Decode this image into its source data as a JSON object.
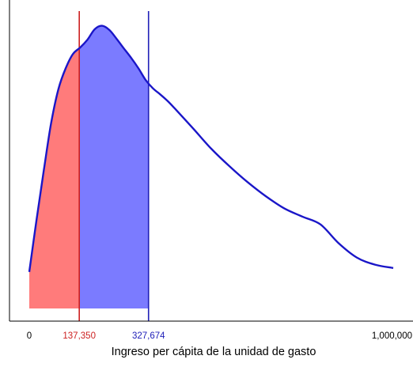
{
  "chart_data": {
    "type": "area",
    "xlabel": "Ingreso per cápita de la unidad de gasto",
    "xlim": [
      0,
      1000000
    ],
    "x_tick_labels": [
      {
        "value": 0,
        "label": "0",
        "color": "#000000"
      },
      {
        "value": 137350,
        "label": "137,350",
        "color": "#cc1f1f"
      },
      {
        "value": 327674,
        "label": "327,674",
        "color": "#2020b8"
      },
      {
        "value": 1000000,
        "label": "1,000,000",
        "color": "#000000"
      }
    ],
    "density_curve": {
      "x": [
        0,
        20000,
        40000,
        60000,
        80000,
        100000,
        120000,
        140000,
        160000,
        180000,
        200000,
        220000,
        240000,
        260000,
        280000,
        300000,
        320000,
        340000,
        360000,
        380000,
        400000,
        450000,
        500000,
        550000,
        600000,
        650000,
        700000,
        750000,
        800000,
        850000,
        900000,
        950000,
        1000000
      ],
      "y": [
        0.14,
        0.34,
        0.53,
        0.71,
        0.84,
        0.92,
        0.975,
        1.0,
        1.03,
        1.07,
        1.083,
        1.067,
        1.033,
        0.996,
        0.96,
        0.92,
        0.875,
        0.843,
        0.82,
        0.795,
        0.766,
        0.69,
        0.612,
        0.545,
        0.484,
        0.43,
        0.384,
        0.352,
        0.322,
        0.25,
        0.195,
        0.168,
        0.155
      ],
      "color": "#1a16c8"
    },
    "shaded_regions": [
      {
        "from": 0,
        "to": 137350,
        "color": "#ff7b7b"
      },
      {
        "from": 137350,
        "to": 327674,
        "color": "#7b7bff"
      }
    ],
    "vertical_lines": [
      {
        "x": 137350,
        "color": "#cc1f1f"
      },
      {
        "x": 327674,
        "color": "#2020b8"
      }
    ]
  }
}
